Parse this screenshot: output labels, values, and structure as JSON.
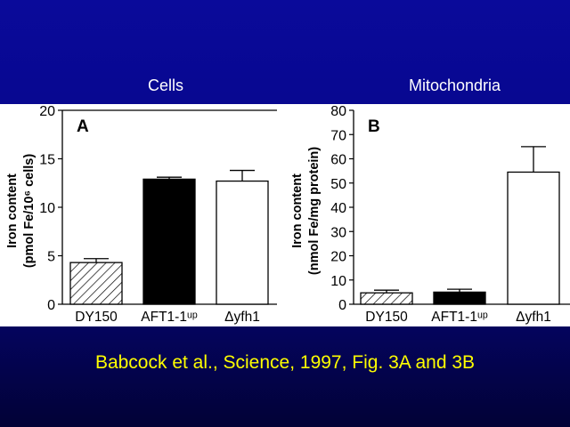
{
  "slide": {
    "panel_titles": [
      "Cells",
      "Mitochondria"
    ],
    "citation": "Babcock et al., Science, 1997, Fig. 3A and 3B",
    "background_color": "#06068a",
    "citation_color": "#ffff00"
  },
  "chart_data": [
    {
      "type": "bar",
      "panel": "A",
      "ylabel_line1": "Iron content",
      "ylabel_line2": "(pmol Fe/10⁶ cells)",
      "ylim": [
        0,
        20
      ],
      "yticks": [
        0,
        5,
        10,
        15,
        20
      ],
      "categories": [
        "DY150",
        "AFT1-1ᵘᵖ",
        "Δyfh1"
      ],
      "values": [
        4.3,
        12.9,
        12.7
      ],
      "errors": [
        0.4,
        0.2,
        1.1
      ],
      "fills": [
        "hatched",
        "black",
        "white"
      ]
    },
    {
      "type": "bar",
      "panel": "B",
      "ylabel_line1": "Iron content",
      "ylabel_line2": "(nmol Fe/mg protein)",
      "ylim": [
        0,
        80
      ],
      "yticks": [
        0,
        10,
        20,
        30,
        40,
        50,
        60,
        70,
        80
      ],
      "categories": [
        "DY150",
        "AFT1-1ᵘᵖ",
        "Δyfh1"
      ],
      "values": [
        4.7,
        5.0,
        54.5
      ],
      "errors": [
        1.1,
        1.2,
        10.5
      ],
      "fills": [
        "hatched",
        "black",
        "white"
      ]
    }
  ]
}
